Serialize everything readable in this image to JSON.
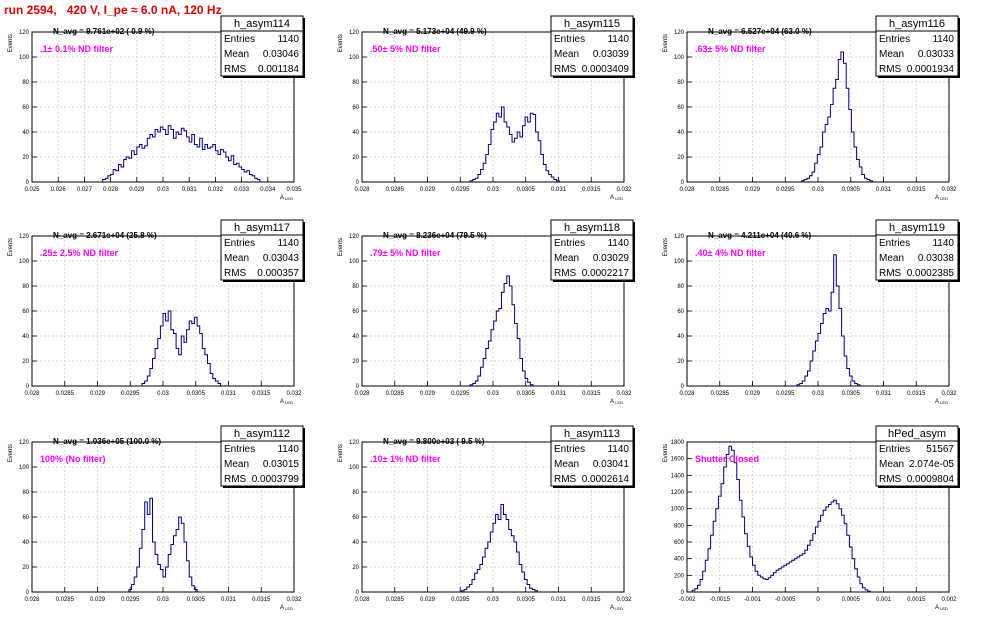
{
  "page_title": "run 2594,   420 V, I_pe ≈ 6.0 nA, 120 Hz",
  "chart_data": [
    {
      "type": "bar",
      "name": "h_asym114",
      "nlabel": "N_avg = 9.761e+02 ( 0.9 %)",
      "filter": ".1± 0.1% ND filter",
      "stats": {
        "entries": "1140",
        "mean": "0.03046",
        "rms": "0.001184"
      },
      "xlim": [
        0.025,
        0.035
      ],
      "ylim": [
        0,
        120
      ],
      "xticks": [
        "0.025",
        "0.026",
        "0.027",
        "0.028",
        "0.029",
        "0.03",
        "0.031",
        "0.032",
        "0.033",
        "0.034",
        "0.035"
      ],
      "yticks": [
        "0",
        "20",
        "40",
        "60",
        "80",
        "100",
        "120"
      ],
      "xlabel": "A_LED",
      "ylabel": "Events",
      "bins": {
        "start": 0.0277,
        "width": 0.0001,
        "values": [
          2,
          3,
          5,
          6,
          10,
          9,
          14,
          12,
          18,
          20,
          19,
          25,
          22,
          28,
          30,
          27,
          29,
          35,
          38,
          36,
          42,
          40,
          44,
          42,
          38,
          45,
          42,
          35,
          40,
          38,
          43,
          41,
          36,
          32,
          38,
          30,
          28,
          35,
          26,
          30,
          27,
          28,
          30,
          25,
          22,
          26,
          24,
          20,
          17,
          21,
          14,
          15,
          12,
          10,
          8,
          9,
          6,
          5,
          3,
          2
        ]
      }
    },
    {
      "type": "bar",
      "name": "h_asym115",
      "nlabel": "N_avg = 5.173e+04 (49.9 %)",
      "filter": ".50± 5% ND filter",
      "stats": {
        "entries": "1140",
        "mean": "0.03039",
        "rms": "0.0003409"
      },
      "xlim": [
        0.028,
        0.032
      ],
      "ylim": [
        0,
        120
      ],
      "xticks": [
        "0.028",
        "0.0285",
        "0.029",
        "0.0295",
        "0.03",
        "0.0305",
        "0.031",
        "0.0315",
        "0.032"
      ],
      "yticks": [
        "0",
        "20",
        "40",
        "60",
        "80",
        "100",
        "120"
      ],
      "xlabel": "A_LED",
      "ylabel": "Events",
      "bins": {
        "start": 0.02965,
        "width": 4e-05,
        "values": [
          1,
          2,
          3,
          6,
          10,
          15,
          22,
          30,
          42,
          48,
          55,
          52,
          60,
          48,
          44,
          38,
          32,
          35,
          40,
          36,
          45,
          52,
          48,
          55,
          54,
          40,
          33,
          22,
          14,
          9,
          6,
          4,
          2,
          1
        ]
      }
    },
    {
      "type": "bar",
      "name": "h_asym116",
      "nlabel": "N_avg = 6.527e+04 (63.0 %)",
      "filter": ".63± 5% ND filter",
      "stats": {
        "entries": "1140",
        "mean": "0.03033",
        "rms": "0.0001934"
      },
      "xlim": [
        0.028,
        0.032
      ],
      "ylim": [
        0,
        120
      ],
      "xticks": [
        "0.028",
        "0.0285",
        "0.029",
        "0.0295",
        "0.03",
        "0.0305",
        "0.031",
        "0.0315",
        "0.032"
      ],
      "yticks": [
        "0",
        "20",
        "40",
        "60",
        "80",
        "100",
        "120"
      ],
      "xlabel": "A_LED",
      "ylabel": "Events",
      "bins": {
        "start": 0.02975,
        "width": 4e-05,
        "values": [
          1,
          2,
          3,
          5,
          8,
          15,
          22,
          28,
          40,
          46,
          52,
          62,
          75,
          82,
          98,
          104,
          95,
          75,
          58,
          40,
          28,
          18,
          12,
          6,
          3,
          2,
          1
        ]
      }
    },
    {
      "type": "bar",
      "name": "h_asym117",
      "nlabel": "N_avg = 2.671e+04 (25.8 %)",
      "filter": ".25± 2.5% ND filter",
      "stats": {
        "entries": "1140",
        "mean": "0.03043",
        "rms": "0.000357"
      },
      "xlim": [
        0.028,
        0.032
      ],
      "ylim": [
        0,
        120
      ],
      "xticks": [
        "0.028",
        "0.0285",
        "0.029",
        "0.0295",
        "0.03",
        "0.0305",
        "0.031",
        "0.0315",
        "0.032"
      ],
      "yticks": [
        "0",
        "20",
        "40",
        "60",
        "80",
        "100",
        "120"
      ],
      "xlabel": "A_LED",
      "ylabel": "Events",
      "bins": {
        "start": 0.02968,
        "width": 4e-05,
        "values": [
          2,
          4,
          8,
          14,
          22,
          30,
          38,
          48,
          58,
          52,
          60,
          45,
          42,
          30,
          25,
          40,
          35,
          45,
          52,
          50,
          55,
          48,
          42,
          30,
          25,
          18,
          10,
          6,
          4,
          2
        ]
      }
    },
    {
      "type": "bar",
      "name": "h_asym118",
      "nlabel": "N_avg = 8.236e+04 (79.5 %)",
      "filter": ".79± 5% ND filter",
      "stats": {
        "entries": "1140",
        "mean": "0.03029",
        "rms": "0.0002217"
      },
      "xlim": [
        0.028,
        0.032
      ],
      "ylim": [
        0,
        120
      ],
      "xticks": [
        "0.028",
        "0.0285",
        "0.029",
        "0.0295",
        "0.03",
        "0.0305",
        "0.031",
        "0.0315",
        "0.032"
      ],
      "yticks": [
        "0",
        "20",
        "40",
        "60",
        "80",
        "100",
        "120"
      ],
      "xlabel": "A_LED",
      "ylabel": "Events",
      "bins": {
        "start": 0.02965,
        "width": 4e-05,
        "values": [
          1,
          2,
          4,
          8,
          15,
          22,
          30,
          36,
          45,
          52,
          60,
          62,
          75,
          82,
          88,
          80,
          65,
          50,
          38,
          22,
          12,
          6,
          3,
          1
        ]
      }
    },
    {
      "type": "bar",
      "name": "h_asym119",
      "nlabel": "N_avg = 4.211e+04 (40.6 %)",
      "filter": ".40± 4% ND filter",
      "stats": {
        "entries": "1140",
        "mean": "0.03038",
        "rms": "0.0002385"
      },
      "xlim": [
        0.028,
        0.032
      ],
      "ylim": [
        0,
        120
      ],
      "xticks": [
        "0.028",
        "0.0285",
        "0.029",
        "0.0295",
        "0.03",
        "0.0305",
        "0.031",
        "0.0315",
        "0.032"
      ],
      "yticks": [
        "0",
        "20",
        "40",
        "60",
        "80",
        "100",
        "120"
      ],
      "xlabel": "A_LED",
      "ylabel": "Events",
      "bins": {
        "start": 0.02968,
        "width": 4e-05,
        "values": [
          1,
          2,
          4,
          8,
          12,
          20,
          28,
          36,
          42,
          50,
          58,
          62,
          60,
          75,
          105,
          80,
          62,
          40,
          24,
          14,
          8,
          4,
          2,
          1
        ]
      }
    },
    {
      "type": "bar",
      "name": "h_asym112",
      "nlabel": "N_avg = 1.036e+05 (100.0 %)",
      "filter": "100% (No filter)",
      "stats": {
        "entries": "1140",
        "mean": "0.03015",
        "rms": "0.0003799"
      },
      "xlim": [
        0.028,
        0.032
      ],
      "ylim": [
        0,
        120
      ],
      "xticks": [
        "0.028",
        "0.0285",
        "0.029",
        "0.0295",
        "0.03",
        "0.0305",
        "0.031",
        "0.0315",
        "0.032"
      ],
      "yticks": [
        "0",
        "20",
        "40",
        "60",
        "80",
        "100",
        "120"
      ],
      "xlabel": "A_LED",
      "ylabel": "Events",
      "bins": {
        "start": 0.02948,
        "width": 4e-05,
        "values": [
          2,
          6,
          12,
          20,
          35,
          50,
          72,
          62,
          75,
          40,
          30,
          22,
          18,
          12,
          20,
          30,
          38,
          45,
          50,
          60,
          55,
          40,
          25,
          12,
          5,
          2
        ]
      }
    },
    {
      "type": "bar",
      "name": "h_asym113",
      "nlabel": "N_avg = 9.800e+03 ( 9.5 %)",
      "filter": ".10± 1% ND filter",
      "stats": {
        "entries": "1140",
        "mean": "0.03041",
        "rms": "0.0002614"
      },
      "xlim": [
        0.028,
        0.032
      ],
      "ylim": [
        0,
        120
      ],
      "xticks": [
        "0.028",
        "0.0285",
        "0.029",
        "0.0295",
        "0.03",
        "0.0305",
        "0.031",
        "0.0315",
        "0.032"
      ],
      "yticks": [
        "0",
        "20",
        "40",
        "60",
        "80",
        "100",
        "120"
      ],
      "xlabel": "A_LED",
      "ylabel": "Events",
      "bins": {
        "start": 0.02952,
        "width": 4e-05,
        "values": [
          1,
          2,
          4,
          6,
          10,
          15,
          18,
          22,
          28,
          35,
          40,
          48,
          55,
          62,
          58,
          70,
          62,
          58,
          50,
          45,
          40,
          32,
          22,
          16,
          10,
          6,
          3,
          2,
          1
        ]
      }
    },
    {
      "type": "bar",
      "name": "hPed_asym",
      "nlabel": "",
      "filter": "Shutter Closed",
      "stats": {
        "entries": "51567",
        "mean": "2.074e-05",
        "rms": "0.0009804"
      },
      "xlim": [
        -0.002,
        0.002
      ],
      "ylim": [
        0,
        1800
      ],
      "xticks": [
        "-0.002",
        "-0.0015",
        "-0.001",
        "-0.0005",
        "0",
        "0.0005",
        "0.001",
        "0.0015",
        "0.002"
      ],
      "yticks": [
        "0",
        "200",
        "400",
        "600",
        "800",
        "1000",
        "1200",
        "1400",
        "1600",
        "1800"
      ],
      "xlabel": "A_LED",
      "ylabel": "Events",
      "bins": {
        "start": -0.00192,
        "width": 4e-05,
        "values": [
          20,
          40,
          80,
          150,
          250,
          380,
          520,
          680,
          850,
          1000,
          1150,
          1300,
          1500,
          1650,
          1750,
          1700,
          1550,
          1350,
          1100,
          900,
          700,
          550,
          420,
          320,
          250,
          200,
          180,
          160,
          150,
          170,
          200,
          230,
          260,
          280,
          300,
          320,
          340,
          360,
          380,
          400,
          420,
          440,
          460,
          500,
          560,
          620,
          700,
          780,
          850,
          920,
          980,
          1020,
          1050,
          1080,
          1100,
          1060,
          1000,
          920,
          820,
          680,
          540,
          400,
          280,
          180,
          100,
          50,
          25,
          10
        ]
      }
    }
  ]
}
